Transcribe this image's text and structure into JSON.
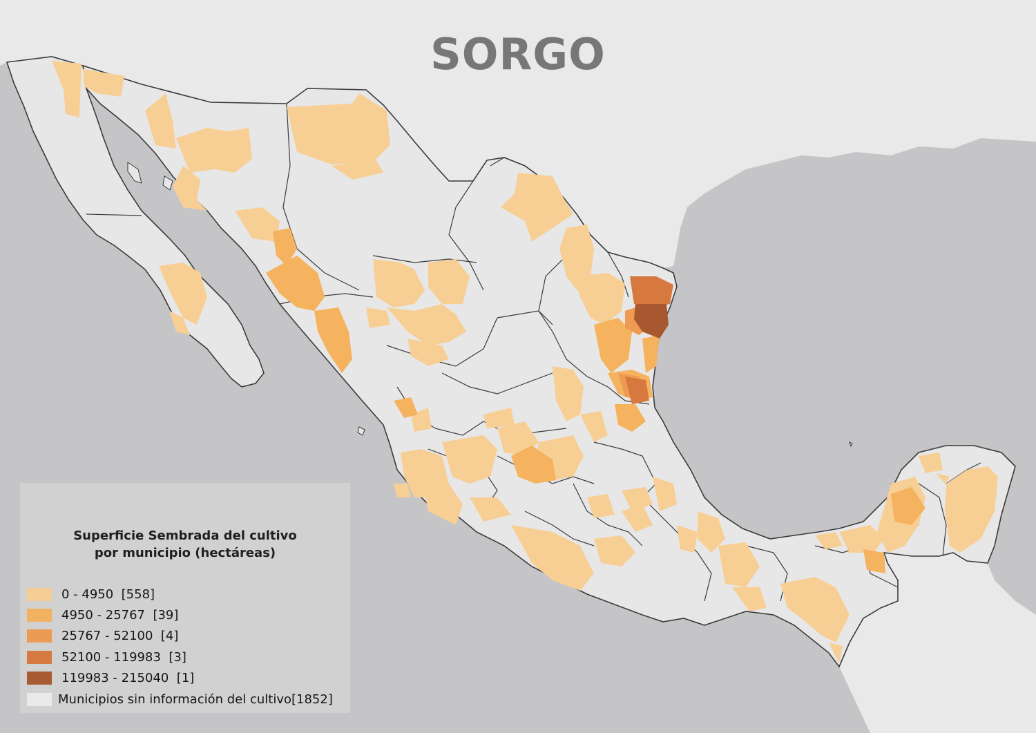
{
  "title": "SORGO",
  "colors": {
    "ocean": "#c5c5c7",
    "land_foreign": "#e9e9e9",
    "land_mexico": "#e7e7e7",
    "border": "#3a3a3a",
    "class_1": "#f7cf95",
    "class_2": "#f5b25f",
    "class_3": "#ee9a52",
    "class_4": "#d7783f",
    "class_5": "#a8582e",
    "no_data": "#ececec"
  },
  "legend": {
    "title_line1": "Superficie Sembrada del cultivo",
    "title_line2": "por municipio (hectáreas)",
    "items": [
      {
        "label": "0 - 4950  [558]",
        "color": "#f7cf95"
      },
      {
        "label": "4950 - 25767  [39]",
        "color": "#f5b25f"
      },
      {
        "label": "25767 - 52100  [4]",
        "color": "#ee9a52"
      },
      {
        "label": "52100 - 119983  [3]",
        "color": "#d7783f"
      },
      {
        "label": "119983 - 215040  [1]",
        "color": "#a8582e"
      },
      {
        "label": "Municipios sin información del cultivo[1852]",
        "color": "#ececec"
      }
    ]
  }
}
